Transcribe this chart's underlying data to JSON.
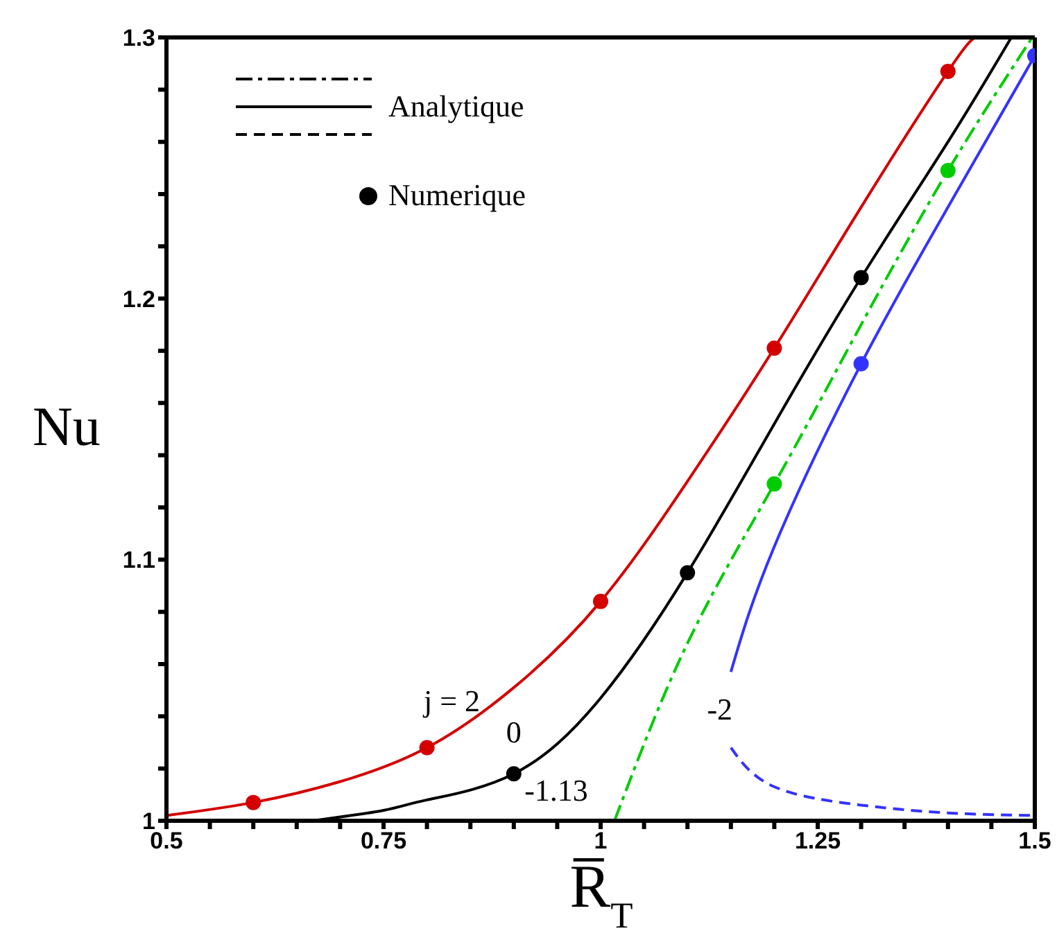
{
  "chart_data": {
    "type": "line",
    "xlabel": "R̅$_{T}$",
    "ylabel": "Nu",
    "xlim": [
      0.5,
      1.5
    ],
    "ylim": [
      1,
      1.3
    ],
    "xticks": [
      0.5,
      {
        "value": 0.55,
        "label": null
      },
      {
        "value": 0.6,
        "label": null
      },
      {
        "value": 0.65,
        "label": null
      },
      {
        "value": 0.7,
        "label": null
      },
      0.75,
      {
        "value": 0.8,
        "label": null
      },
      {
        "value": 0.85,
        "label": null
      },
      {
        "value": 0.9,
        "label": null
      },
      {
        "value": 0.95,
        "label": null
      },
      1,
      {
        "value": 1.05,
        "label": null
      },
      {
        "value": 1.1,
        "label": null
      },
      {
        "value": 1.15,
        "label": null
      },
      {
        "value": 1.2,
        "label": null
      },
      1.25,
      {
        "value": 1.3,
        "label": null
      },
      {
        "value": 1.35,
        "label": null
      },
      {
        "value": 1.4,
        "label": null
      },
      {
        "value": 1.45,
        "label": null
      },
      1.5
    ],
    "yticks": [
      1,
      {
        "value": 1.02,
        "label": null
      },
      {
        "value": 1.04,
        "label": null
      },
      {
        "value": 1.06,
        "label": null
      },
      {
        "value": 1.08,
        "label": null
      },
      1.1,
      {
        "value": 1.12,
        "label": null
      },
      {
        "value": 1.14,
        "label": null
      },
      {
        "value": 1.16,
        "label": null
      },
      {
        "value": 1.18,
        "label": null
      },
      1.2,
      {
        "value": 1.22,
        "label": null
      },
      {
        "value": 1.24,
        "label": null
      },
      {
        "value": 1.26,
        "label": null
      },
      {
        "value": 1.28,
        "label": null
      },
      1.3
    ],
    "legend": "top left",
    "series": [
      {
        "line_style": "solid",
        "color": "#d40000",
        "x": [
          0.5,
          0.6,
          0.7,
          0.8,
          0.9,
          1.0,
          1.1,
          1.2,
          1.3,
          1.4,
          1.431
        ],
        "values": [
          1.002,
          1.007,
          1.015,
          1.028,
          1.051,
          1.084,
          1.13,
          1.181,
          1.235,
          1.287,
          1.3
        ]
      },
      {
        "line_style": "solid",
        "color": "#000000",
        "name": "Analytique",
        "x": [
          0.668,
          0.75,
          0.8,
          0.9,
          1.0,
          1.1,
          1.2,
          1.3,
          1.4,
          1.473
        ],
        "values": [
          1.0,
          1.004,
          1.008,
          1.018,
          1.047,
          1.095,
          1.152,
          1.208,
          1.26,
          1.3
        ]
      },
      {
        "line_style": "dashdot",
        "color": "#00cc00",
        "x": [
          1.016,
          1.1,
          1.2,
          1.3,
          1.4,
          1.497
        ],
        "values": [
          1.0,
          1.068,
          1.129,
          1.19,
          1.249,
          1.3
        ]
      },
      {
        "line_style": "solid",
        "color": "#3333ff",
        "x": [
          1.15,
          1.2,
          1.3,
          1.4,
          1.5
        ],
        "values": [
          1.057,
          1.105,
          1.175,
          1.235,
          1.293
        ]
      },
      {
        "line_style": "dashed",
        "color": "#3333ff",
        "x": [
          1.15,
          1.2,
          1.3,
          1.4,
          1.5
        ],
        "values": [
          1.028,
          1.013,
          1.006,
          1.003,
          1.002
        ]
      },
      {
        "type": "scatter",
        "marker": "circle",
        "color": "#d40000",
        "x": [
          0.6,
          0.8,
          1.0,
          1.2,
          1.4
        ],
        "values": [
          1.007,
          1.028,
          1.084,
          1.181,
          1.287
        ]
      },
      {
        "type": "scatter",
        "marker": "circle",
        "color": "#000000",
        "name": "Numerique",
        "x": [
          0.9,
          1.1,
          1.3
        ],
        "values": [
          1.018,
          1.095,
          1.208
        ]
      },
      {
        "type": "scatter",
        "marker": "circle",
        "color": "#00cc00",
        "x": [
          1.2,
          1.4
        ],
        "values": [
          1.129,
          1.249
        ]
      },
      {
        "type": "scatter",
        "marker": "circle",
        "color": "#3333ff",
        "x": [
          1.3,
          1.5
        ],
        "values": [
          1.175,
          1.293
        ]
      }
    ],
    "annotations": [
      {
        "text": "j = 2",
        "x": 0.8,
        "y": 1.028
      },
      {
        "text": "0",
        "x": 0.9,
        "y": 1.018
      },
      {
        "text": "-1.13",
        "x": 1.016,
        "y": 1.0
      },
      {
        "text": "-2",
        "x": 1.15,
        "y": 1.028
      }
    ]
  }
}
